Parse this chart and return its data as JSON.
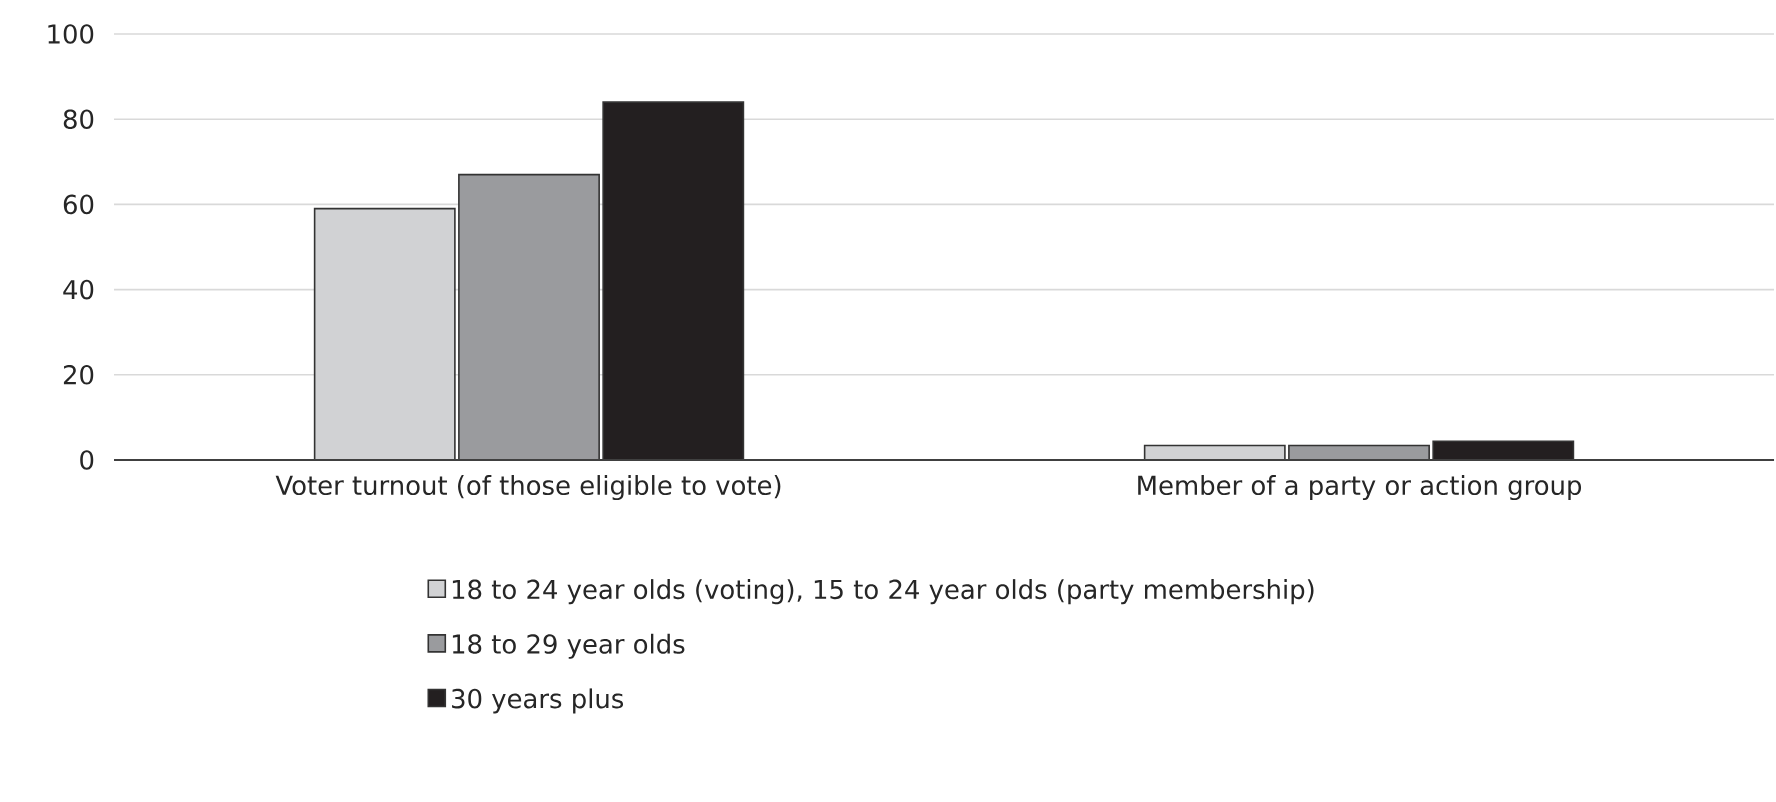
{
  "chart_data": {
    "type": "bar",
    "categories": [
      "Voter turnout (of those eligible to vote)",
      "Member of a party or action group"
    ],
    "series": [
      {
        "name": "18 to 24 year olds (voting), 15 to 24 year olds (party membership)",
        "color": "#d1d2d4",
        "values": [
          59,
          3.4
        ]
      },
      {
        "name": "18 to 29 year olds",
        "color": "#9a9b9e",
        "values": [
          67,
          3.4
        ]
      },
      {
        "name": "30 years plus",
        "color": "#231f20",
        "values": [
          84,
          4.4
        ]
      }
    ],
    "ylim": [
      0,
      100
    ],
    "yticks": [
      0,
      20,
      40,
      60,
      80,
      100
    ],
    "grid": "y",
    "legend": "bottom"
  }
}
